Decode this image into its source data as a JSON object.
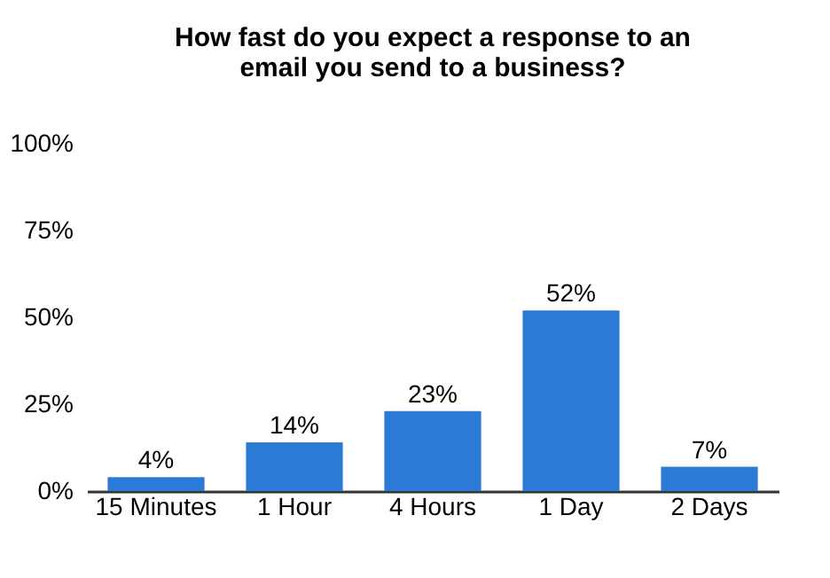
{
  "chart_data": {
    "type": "bar",
    "title": "How fast do you expect a response to an email you send to a business?",
    "categories": [
      "15 Minutes",
      "1 Hour",
      "4 Hours",
      "1 Day",
      "2 Days"
    ],
    "values": [
      4,
      14,
      23,
      52,
      7
    ],
    "value_labels": [
      "4%",
      "14%",
      "23%",
      "52%",
      "7%"
    ],
    "color": "#2a7ad6",
    "ylim": [
      0,
      100
    ],
    "yticks": [
      {
        "value": 0,
        "label": "0%"
      },
      {
        "value": 25,
        "label": "25%"
      },
      {
        "value": 50,
        "label": "50%"
      },
      {
        "value": 75,
        "label": "75%"
      },
      {
        "value": 100,
        "label": "100%"
      }
    ],
    "grid": false
  }
}
